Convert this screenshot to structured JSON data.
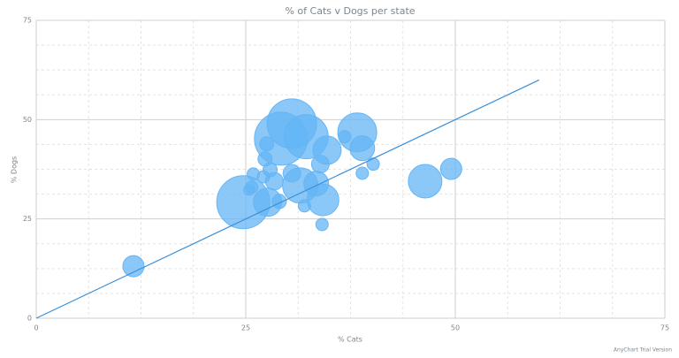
{
  "chart_data": {
    "type": "bubble",
    "title": "% of Cats v Dogs per state",
    "x_label": "% Cats",
    "y_label": "% Dogs",
    "watermark": "AnyChart Trial Version",
    "xlim": [
      0,
      75
    ],
    "xticks": [
      0,
      25,
      50,
      75
    ],
    "ylim": [
      0,
      75
    ],
    "yticks": [
      0,
      25,
      50,
      75
    ],
    "x_minor_ticks": [
      6.25,
      12.5,
      18.75,
      31.25,
      37.5,
      43.75,
      56.25,
      62.5,
      68.75
    ],
    "y_minor_ticks": [
      6.25,
      12.5,
      18.75,
      31.25,
      37.5,
      43.75,
      56.25,
      62.5,
      68.75
    ],
    "grid": true,
    "bubble_color": "#64b5f6",
    "x": [
      11.6,
      24.7,
      29.2,
      30.5,
      32.2,
      38.3,
      38.9,
      46.4,
      49.5,
      34.2,
      27.6,
      31.5,
      33.4,
      34.7,
      25.7,
      25.9,
      25.4,
      27.3,
      27.5,
      28.4,
      29.0,
      32.0,
      34.1,
      40.2,
      38.9,
      36.8,
      33.9,
      30.5,
      27.9,
      27.1
    ],
    "y": [
      13.1,
      29.2,
      45.2,
      49.0,
      45.7,
      46.8,
      42.8,
      34.5,
      37.6,
      29.8,
      29.2,
      33.4,
      33.9,
      42.3,
      33.0,
      36.3,
      32.3,
      40.1,
      43.9,
      34.5,
      29.4,
      28.3,
      23.6,
      38.8,
      36.5,
      45.7,
      38.8,
      36.5,
      37.4,
      35.6
    ],
    "size": [
      12,
      30,
      30,
      28,
      25,
      22,
      14,
      19,
      12,
      18,
      16,
      20,
      14,
      16,
      7,
      7,
      6,
      8,
      8,
      10,
      8,
      7,
      7,
      7,
      7,
      7,
      10,
      10,
      8,
      7
    ],
    "trendline": {
      "x": [
        0,
        60
      ],
      "y": [
        0,
        60
      ],
      "color": "#3a8fd9"
    }
  }
}
